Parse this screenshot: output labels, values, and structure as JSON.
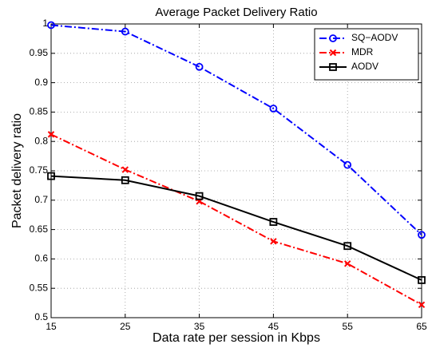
{
  "chart_data": {
    "type": "line",
    "title": "Average Packet Delivery Ratio",
    "x_label": "Data rate per session in Kbps",
    "y_label": "Packet delivery ratio",
    "x": [
      15,
      25,
      35,
      45,
      55,
      65
    ],
    "series": [
      {
        "name": "SQ−AODV",
        "color": "#0000ff",
        "line_style": "dash-dot",
        "marker": "circle",
        "values": [
          0.998,
          0.987,
          0.927,
          0.856,
          0.76,
          0.641
        ]
      },
      {
        "name": "MDR",
        "color": "#ff0000",
        "line_style": "dash-dot",
        "marker": "x",
        "values": [
          0.812,
          0.752,
          0.698,
          0.63,
          0.592,
          0.522
        ]
      },
      {
        "name": "AODV",
        "color": "#000000",
        "line_style": "solid",
        "marker": "square",
        "values": [
          0.741,
          0.734,
          0.707,
          0.663,
          0.622,
          0.564
        ]
      }
    ],
    "xlim": [
      15,
      65
    ],
    "xticks": [
      15,
      25,
      35,
      45,
      55,
      65
    ],
    "ylim": [
      0.5,
      1
    ],
    "yticks": [
      0.5,
      0.55,
      0.6,
      0.65,
      0.7,
      0.75,
      0.8,
      0.85,
      0.9,
      0.95,
      1
    ],
    "grid": true,
    "legend": "northeast"
  }
}
